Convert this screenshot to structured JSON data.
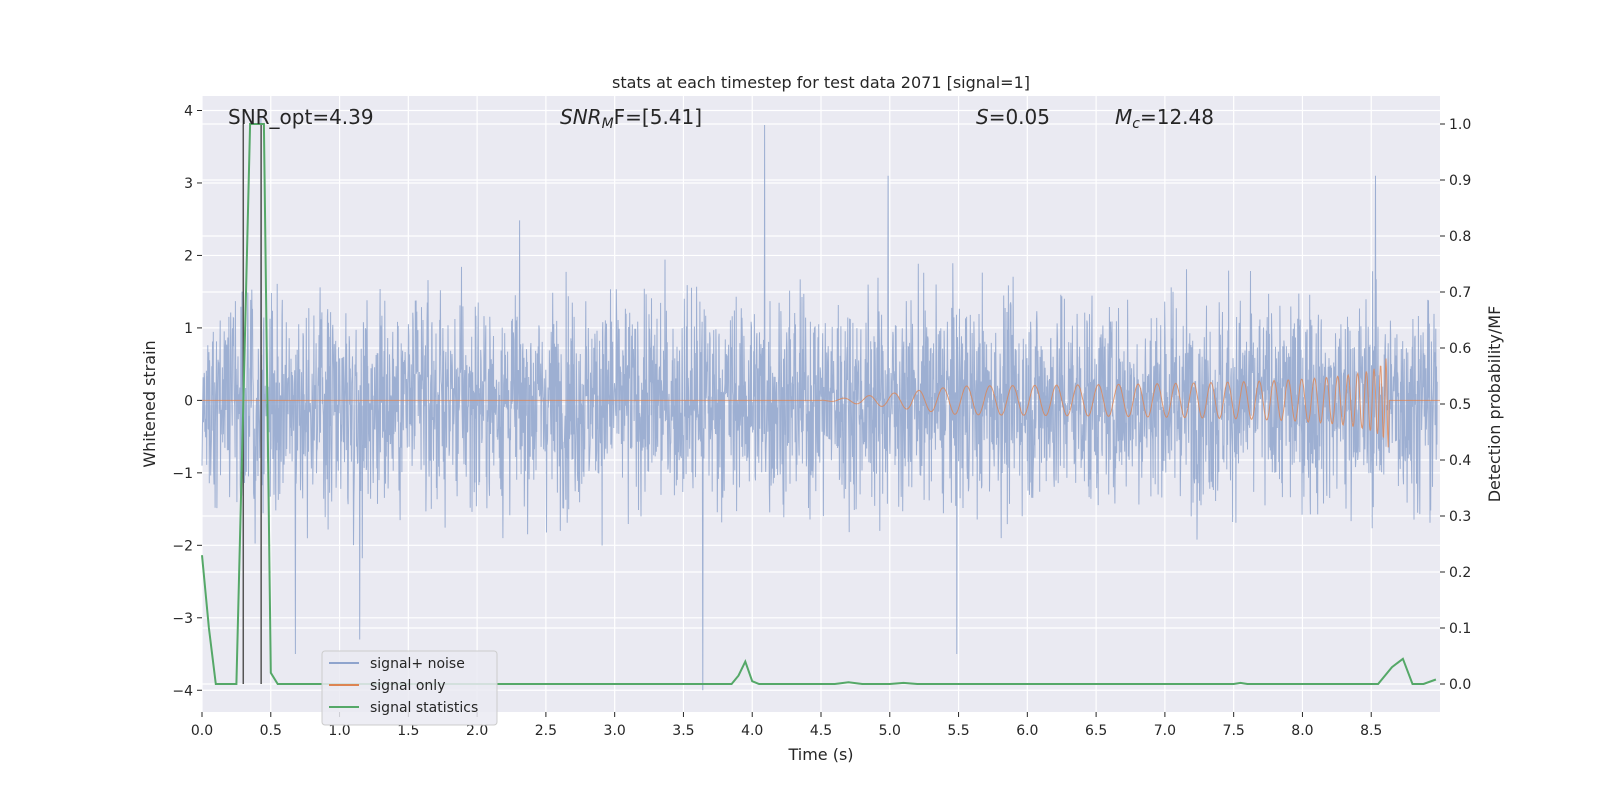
{
  "chart_data": {
    "type": "line",
    "title": "stats at each timestep for test data 2071 [signal=1]",
    "xlabel": "Time (s)",
    "ylabel_left": "Whitened strain",
    "ylabel_right": "Detection probability/MF",
    "xlim": [
      0.0,
      9.0
    ],
    "ylim_left": [
      -4.3,
      4.2
    ],
    "ylim_right": [
      -0.05,
      1.05
    ],
    "xticks": [
      "0.0",
      "0.5",
      "1.0",
      "1.5",
      "2.0",
      "2.5",
      "3.0",
      "3.5",
      "4.0",
      "4.5",
      "5.0",
      "5.5",
      "6.0",
      "6.5",
      "7.0",
      "7.5",
      "8.0",
      "8.5"
    ],
    "xtick_values": [
      0.0,
      0.5,
      1.0,
      1.5,
      2.0,
      2.5,
      3.0,
      3.5,
      4.0,
      4.5,
      5.0,
      5.5,
      6.0,
      6.5,
      7.0,
      7.5,
      8.0,
      8.5
    ],
    "yticks_left": [
      "−4",
      "−3",
      "−2",
      "−1",
      "0",
      "1",
      "2",
      "3",
      "4"
    ],
    "ytick_values_left": [
      -4,
      -3,
      -2,
      -1,
      0,
      1,
      2,
      3,
      4
    ],
    "yticks_right": [
      "0.0",
      "0.1",
      "0.2",
      "0.3",
      "0.4",
      "0.5",
      "0.6",
      "0.7",
      "0.8",
      "0.9",
      "1.0"
    ],
    "ytick_values_right": [
      0.0,
      0.1,
      0.2,
      0.3,
      0.4,
      0.5,
      0.6,
      0.7,
      0.8,
      0.9,
      1.0
    ],
    "grid": true,
    "legend_position": "lower-left",
    "annotations": {
      "snr_opt": "SNR_opt=4.39",
      "snr_mf_main": "SNR",
      "snr_mf_sub": "M",
      "snr_mf_rest": "F=[5.41]",
      "s_italic": "S",
      "s_rest": "=0.05",
      "mc_italic": "M",
      "mc_sub": "c",
      "mc_rest": "=12.48"
    },
    "markers_x": [
      0.3,
      0.43
    ],
    "series": [
      {
        "name": "signal+ noise",
        "color": "#8fa4cd",
        "axis": "left",
        "description_values": {
          "typical_abs_range": [
            -2.5,
            2.5
          ],
          "peaks": [
            [
              0.43,
              3.9
            ],
            [
              4.1,
              3.8
            ],
            [
              5.0,
              3.1
            ],
            [
              8.55,
              3.1
            ],
            [
              3.65,
              -4.0
            ],
            [
              5.5,
              -3.5
            ],
            [
              0.68,
              -3.5
            ],
            [
              1.15,
              -3.3
            ]
          ]
        }
      },
      {
        "name": "signal only",
        "color": "#dd8452",
        "axis": "left",
        "chirp": {
          "start": 4.5,
          "end": 8.63,
          "max_amp": 0.7
        }
      },
      {
        "name": "signal statistics",
        "color": "#55a868",
        "axis": "right",
        "x": [
          0.0,
          0.05,
          0.1,
          0.2,
          0.25,
          0.3,
          0.35,
          0.4,
          0.45,
          0.5,
          0.55,
          0.6,
          1.0,
          2.0,
          3.0,
          3.85,
          3.9,
          3.95,
          4.0,
          4.05,
          4.5,
          4.6,
          4.7,
          4.8,
          5.0,
          5.1,
          5.2,
          5.3,
          6.0,
          7.0,
          7.5,
          7.55,
          7.6,
          8.0,
          8.55,
          8.65,
          8.73,
          8.8,
          8.88,
          8.97
        ],
        "values": [
          0.23,
          0.1,
          0.0,
          0.0,
          0.0,
          0.5,
          1.0,
          1.0,
          1.0,
          0.02,
          0.0,
          0.0,
          0.0,
          0.0,
          0.0,
          0.0,
          0.015,
          0.04,
          0.005,
          0.0,
          0.0,
          0.0,
          0.003,
          0.0,
          0.0,
          0.002,
          0.0,
          0.0,
          0.0,
          0.0,
          0.0,
          0.002,
          0.0,
          0.0,
          0.0,
          0.03,
          0.045,
          0.0,
          0.0,
          0.008
        ]
      }
    ]
  }
}
